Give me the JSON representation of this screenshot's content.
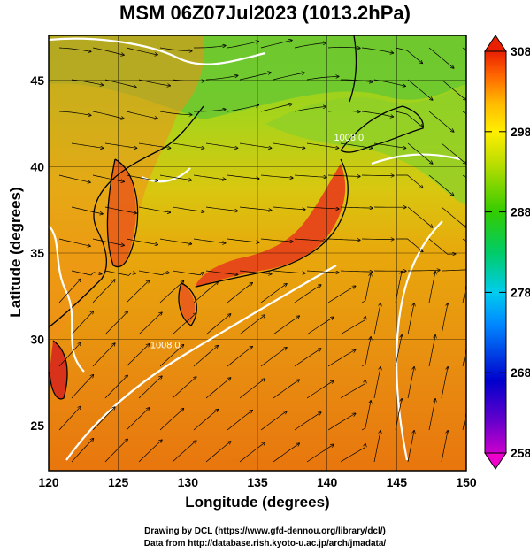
{
  "title": "MSM 06Z07Jul2023 (1013.2hPa)",
  "axes": {
    "xlabel": "Longitude (degrees)",
    "ylabel": "Latitude  (degrees)",
    "x_ticks": [
      "120",
      "125",
      "130",
      "135",
      "140",
      "145",
      "150"
    ],
    "y_ticks": [
      "25",
      "30",
      "35",
      "40",
      "45"
    ],
    "xlim": [
      120,
      150
    ],
    "ylim": [
      22.4,
      47.6
    ]
  },
  "colorbar": {
    "min_label": "258",
    "max_label": "308",
    "labels": [
      "308",
      "298",
      "288",
      "278",
      "268",
      "258"
    ],
    "colors": [
      "#cc00cc",
      "#3300cc",
      "#0066ff",
      "#00ccff",
      "#00cc66",
      "#33cc00",
      "#99dd00",
      "#ffff00",
      "#ffcc00",
      "#ff9900",
      "#ff6600",
      "#ff3300",
      "#e60000"
    ]
  },
  "contour_labels": [
    {
      "text": "1008.0",
      "lon": 140.5,
      "lat": 41.5
    },
    {
      "text": "1008.0",
      "lon": 127.3,
      "lat": 29.5
    }
  ],
  "credits": {
    "line1": "Drawing by DCL (https://www.gfd-dennou.org/library/dcl/)",
    "line2": "Data from http://database.rish.kyoto-u.ac.jp/arch/jmadata/"
  },
  "legend_colors": {
    "land_hot": "#e8501a",
    "ocean_warm": "#e88a10",
    "north_cool": "#5cc83a",
    "coast": "#000000",
    "isobar": "#ffffff"
  }
}
